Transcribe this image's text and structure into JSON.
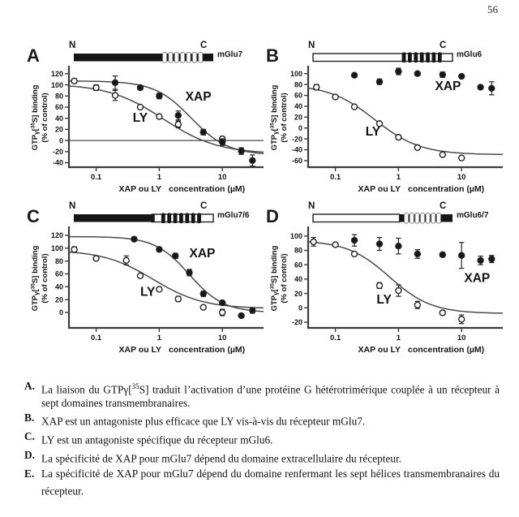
{
  "page_number": "56",
  "axis": {
    "x_label_bold": "XAP ou LY",
    "x_label_rest": "concentration (µM)",
    "y_label": {
      "pre": "GTP",
      "gamma": "γ",
      "bracket": "[",
      "sup": "35",
      "post": "S] binding",
      "line2": "(% of control)"
    },
    "x_ticks": [
      0.1,
      1,
      10
    ],
    "x_range": [
      0.037,
      45
    ]
  },
  "chart_data": [
    {
      "type": "scatter",
      "panel": "A",
      "receptor": "mGlu7",
      "n": "N",
      "c": "C",
      "ylim": [
        -48,
        130
      ],
      "yticks": [
        120,
        100,
        80,
        60,
        40,
        20,
        0,
        -20,
        -40
      ],
      "zero_line": true,
      "schematic": {
        "segments": [
          {
            "x0": 0,
            "x1": 1,
            "fill": "#161616",
            "stroke": "none"
          }
        ],
        "stripes": {
          "x0": 0.63,
          "x1": 0.93,
          "n": 7,
          "fill": "#ffffff",
          "stroke": "#8a8a8a"
        }
      },
      "series": [
        {
          "name": "LY",
          "marker": "open",
          "points": [
            [
              0.045,
              107,
              4
            ],
            [
              0.1,
              95,
              5
            ],
            [
              0.2,
              81,
              9
            ],
            [
              0.5,
              60,
              0
            ],
            [
              1,
              43,
              0
            ],
            [
              2,
              29,
              6
            ],
            [
              10,
              3,
              4
            ]
          ],
          "curve": {
            "top": 102,
            "bottom": -24,
            "ec50": 1.15,
            "hill": 1.0
          },
          "label": {
            "text": "LY",
            "x": 0.38,
            "y": 34
          }
        },
        {
          "name": "XAP",
          "marker": "filled",
          "points": [
            [
              0.2,
              104,
              12
            ],
            [
              0.5,
              95,
              4
            ],
            [
              1,
              80,
              5
            ],
            [
              2,
              45,
              8
            ],
            [
              5,
              15,
              5
            ],
            [
              10,
              -3,
              6
            ],
            [
              20,
              -19,
              6
            ],
            [
              30,
              -36,
              10
            ]
          ],
          "curve": {
            "top": 107,
            "bottom": -26,
            "ec50": 3.2,
            "hill": 1.5
          },
          "label": {
            "text": "XAP",
            "x": 2.6,
            "y": 72
          }
        }
      ]
    },
    {
      "type": "scatter",
      "panel": "B",
      "receptor": "mGlu6",
      "n": "N",
      "c": "C",
      "ylim": [
        -72,
        110
      ],
      "yticks": [
        100,
        80,
        60,
        40,
        20,
        0,
        -20,
        -40,
        -60
      ],
      "zero_line": false,
      "schematic": {
        "segments": [
          {
            "x0": 0,
            "x1": 1,
            "fill": "#ffffff",
            "stroke": "#222222"
          }
        ],
        "stripes": {
          "x0": 0.63,
          "x1": 0.93,
          "n": 7,
          "fill": "#161616",
          "stroke": "none"
        }
      },
      "series": [
        {
          "name": "LY",
          "marker": "open",
          "points": [
            [
              0.05,
              75,
              5
            ],
            [
              0.1,
              57,
              0
            ],
            [
              0.2,
              39,
              3
            ],
            [
              0.5,
              8,
              0
            ],
            [
              1,
              -17,
              4
            ],
            [
              2,
              -36,
              0
            ],
            [
              5,
              -49,
              0
            ],
            [
              10,
              -55,
              0
            ]
          ],
          "curve": {
            "top": 80,
            "bottom": -49,
            "ec50": 0.42,
            "hill": 1.2
          },
          "label": {
            "text": "LY",
            "x": 0.3,
            "y": -14
          }
        },
        {
          "name": "XAP",
          "marker": "filled",
          "points": [
            [
              0.2,
              97,
              0
            ],
            [
              0.5,
              85,
              5
            ],
            [
              1,
              104,
              6
            ],
            [
              2,
              100,
              3
            ],
            [
              5,
              98,
              5
            ],
            [
              10,
              95,
              0
            ],
            [
              20,
              75,
              0
            ],
            [
              30,
              73,
              12
            ]
          ],
          "curve": null,
          "label": {
            "text": "XAP",
            "x": 3.8,
            "y": 70
          }
        }
      ]
    },
    {
      "type": "scatter",
      "panel": "C",
      "receptor": "mGlu7/6",
      "n": "N",
      "c": "C",
      "ylim": [
        -24,
        130
      ],
      "yticks": [
        120,
        100,
        80,
        60,
        40,
        20,
        0
      ],
      "zero_line": false,
      "schematic": {
        "segments": [
          {
            "x0": 0.56,
            "x1": 1,
            "fill": "#ffffff",
            "stroke": "#222222"
          },
          {
            "x0": 0,
            "x1": 0.58,
            "fill": "#161616",
            "stroke": "none"
          }
        ],
        "stripes": {
          "x0": 0.62,
          "x1": 0.92,
          "n": 7,
          "fill": "#161616",
          "stroke": "none"
        }
      },
      "series": [
        {
          "name": "LY",
          "marker": "open",
          "points": [
            [
              0.045,
              98,
              4
            ],
            [
              0.1,
              84,
              3
            ],
            [
              0.3,
              81,
              7
            ],
            [
              0.5,
              57,
              0
            ],
            [
              1,
              36,
              0
            ],
            [
              2,
              21,
              4
            ],
            [
              5,
              8,
              0
            ],
            [
              10,
              0,
              5
            ]
          ],
          "curve": {
            "top": 97,
            "bottom": 6,
            "ec50": 0.8,
            "hill": 1.1
          },
          "label": {
            "text": "LY",
            "x": 0.5,
            "y": 26
          }
        },
        {
          "name": "XAP",
          "marker": "filled",
          "points": [
            [
              0.4,
              114,
              3
            ],
            [
              1,
              98,
              3
            ],
            [
              1.8,
              88,
              4
            ],
            [
              3,
              62,
              5
            ],
            [
              5,
              29,
              4
            ],
            [
              10,
              15,
              3
            ],
            [
              20,
              -5,
              0
            ],
            [
              30,
              3,
              4
            ]
          ],
          "curve": {
            "top": 118,
            "bottom": 0,
            "ec50": 3.0,
            "hill": 1.6
          },
          "label": {
            "text": "XAP",
            "x": 3.0,
            "y": 86
          }
        }
      ]
    },
    {
      "type": "scatter",
      "panel": "D",
      "receptor": "mGlu6/7",
      "n": "N",
      "c": "C",
      "ylim": [
        -28,
        110
      ],
      "yticks": [
        100,
        80,
        60,
        40,
        20,
        0,
        -20
      ],
      "zero_line": false,
      "schematic": {
        "segments": [
          {
            "x0": 0.6,
            "x1": 1,
            "fill": "#161616",
            "stroke": "none"
          },
          {
            "x0": 0,
            "x1": 0.62,
            "fill": "#ffffff",
            "stroke": "#222222"
          }
        ],
        "stripes": {
          "x0": 0.65,
          "x1": 0.92,
          "n": 7,
          "fill": "#ffffff",
          "stroke": "#8a8a8a"
        }
      },
      "series": [
        {
          "name": "LY",
          "marker": "open",
          "points": [
            [
              0.045,
              92,
              6
            ],
            [
              0.1,
              88,
              0
            ],
            [
              0.2,
              75,
              0
            ],
            [
              0.5,
              31,
              4
            ],
            [
              1,
              24,
              8
            ],
            [
              2,
              4,
              5
            ],
            [
              5,
              -7,
              3
            ],
            [
              10,
              -16,
              6
            ]
          ],
          "curve": {
            "top": 94,
            "bottom": -8,
            "ec50": 0.72,
            "hill": 1.3
          },
          "label": {
            "text": "LY",
            "x": 0.45,
            "y": 6
          }
        },
        {
          "name": "XAP",
          "marker": "filled",
          "points": [
            [
              0.2,
              94,
              8
            ],
            [
              0.5,
              89,
              9
            ],
            [
              1,
              86,
              11
            ],
            [
              2,
              75,
              6
            ],
            [
              5,
              74,
              3
            ],
            [
              10,
              73,
              18
            ],
            [
              20,
              66,
              6
            ],
            [
              30,
              68,
              5
            ]
          ],
          "curve": null,
          "label": {
            "text": "XAP",
            "x": 11,
            "y": 36
          }
        }
      ]
    }
  ],
  "options": [
    {
      "letter": "A.",
      "pre": "La liaison du GTPγ[",
      "sup": "35",
      "post": "S] traduit l’activation d’une protéine G hétérotrimérique couplée à un récepteur à sept domaines transmembranaires."
    },
    {
      "letter": "B.",
      "pre": "XAP est un antagoniste plus efficace que LY vis-à-vis du récepteur mGlu7.",
      "sup": "",
      "post": ""
    },
    {
      "letter": "C.",
      "pre": "LY est un antagoniste spécifique du récepteur mGlu6.",
      "sup": "",
      "post": ""
    },
    {
      "letter": "D.",
      "pre": "La spécificité de XAP pour mGlu7 dépend du domaine extracellulaire du récepteur.",
      "sup": "",
      "post": ""
    },
    {
      "letter": "E.",
      "pre": "La spécificité de XAP pour mGlu7 dépend du domaine renfermant les sept hélices transmembranaires du récepteur.",
      "sup": "",
      "post": ""
    }
  ]
}
